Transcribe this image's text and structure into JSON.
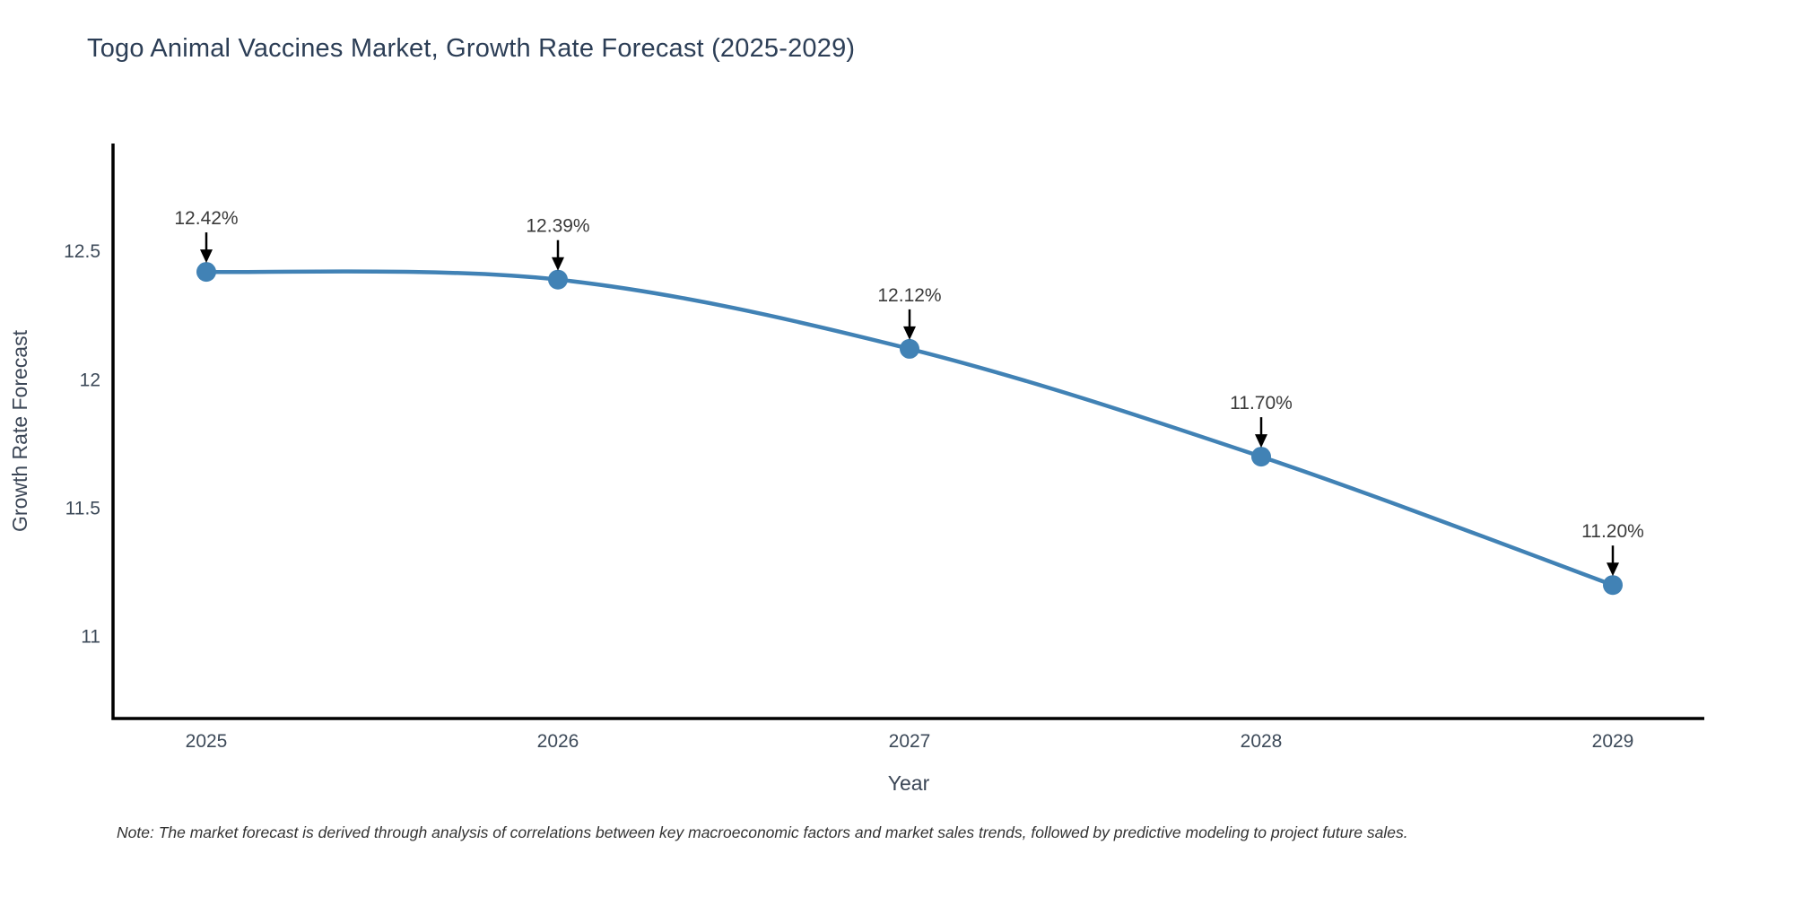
{
  "title": "Togo Animal Vaccines Market, Growth Rate Forecast (2025-2029)",
  "note": "Note: The market forecast is derived through analysis of correlations between key macroeconomic factors and market sales trends, followed by predictive modeling to project future sales.",
  "chart_data": {
    "type": "line",
    "x": [
      2025,
      2026,
      2027,
      2028,
      2029
    ],
    "xticks": [
      "2025",
      "2026",
      "2027",
      "2028",
      "2029"
    ],
    "series": [
      {
        "name": "Growth Rate Forecast",
        "values": [
          12.42,
          12.39,
          12.12,
          11.7,
          11.2
        ]
      }
    ],
    "point_labels": [
      "12.42%",
      "12.39%",
      "12.12%",
      "11.70%",
      "11.20%"
    ],
    "title": "Togo Animal Vaccines Market, Growth Rate Forecast (2025-2029)",
    "xlabel": "Year",
    "ylabel": "Growth Rate Forecast",
    "yticks": [
      11,
      11.5,
      12,
      12.5
    ],
    "ylim": [
      10.68,
      12.92
    ],
    "grid": false,
    "legend": false,
    "colors": {
      "line": "#4182b5",
      "marker": "#4182b5",
      "axis": "#000000",
      "annotation_arrow": "#000000",
      "annotation_text": "#3a3a3a",
      "tick_label": "#3d4a59",
      "axis_title": "#3b4656",
      "title_text": "#2c3e56"
    }
  }
}
